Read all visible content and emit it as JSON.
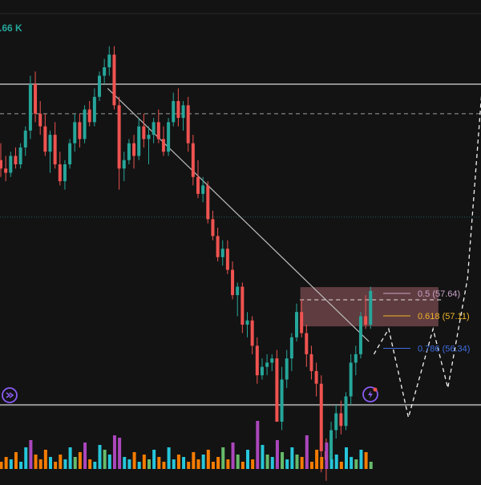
{
  "header": {
    "volume_readout": ".66 K"
  },
  "colors": {
    "background": "#131313",
    "bull": "#26a69a",
    "bear": "#ef5350",
    "horizontal_line": "#d9d9d9",
    "trendline": "#bdbdbd",
    "fib_05": "#c8a2c8",
    "fib_0618": "#f0b429",
    "fib_0786": "#3f6fe0",
    "fib_zone": "#7a4b50",
    "icon_accent": "#8b5cf6"
  },
  "chart_data": {
    "type": "candlestick",
    "price_range": [
      55.0,
      64.5
    ],
    "candles": [
      {
        "o": 60.8,
        "h": 61.2,
        "l": 60.4,
        "c": 60.6
      },
      {
        "o": 60.6,
        "h": 60.9,
        "l": 60.3,
        "c": 60.5
      },
      {
        "o": 60.5,
        "h": 61.0,
        "l": 60.4,
        "c": 60.9
      },
      {
        "o": 60.9,
        "h": 61.1,
        "l": 60.6,
        "c": 60.7
      },
      {
        "o": 60.7,
        "h": 61.2,
        "l": 60.6,
        "c": 61.1
      },
      {
        "o": 61.1,
        "h": 61.6,
        "l": 60.9,
        "c": 61.5
      },
      {
        "o": 61.5,
        "h": 62.8,
        "l": 61.3,
        "c": 62.6
      },
      {
        "o": 62.6,
        "h": 62.9,
        "l": 61.7,
        "c": 61.9
      },
      {
        "o": 61.9,
        "h": 62.2,
        "l": 61.4,
        "c": 61.6
      },
      {
        "o": 61.6,
        "h": 61.9,
        "l": 60.9,
        "c": 61.0
      },
      {
        "o": 61.0,
        "h": 61.5,
        "l": 60.5,
        "c": 61.4
      },
      {
        "o": 61.4,
        "h": 61.7,
        "l": 60.6,
        "c": 60.7
      },
      {
        "o": 60.7,
        "h": 61.0,
        "l": 60.2,
        "c": 60.3
      },
      {
        "o": 60.3,
        "h": 60.8,
        "l": 60.1,
        "c": 60.7
      },
      {
        "o": 60.7,
        "h": 61.3,
        "l": 60.6,
        "c": 61.2
      },
      {
        "o": 61.2,
        "h": 61.9,
        "l": 61.0,
        "c": 61.7
      },
      {
        "o": 61.7,
        "h": 61.9,
        "l": 61.1,
        "c": 61.3
      },
      {
        "o": 61.3,
        "h": 62.1,
        "l": 61.2,
        "c": 62.0
      },
      {
        "o": 62.0,
        "h": 62.2,
        "l": 61.6,
        "c": 61.7
      },
      {
        "o": 61.7,
        "h": 62.5,
        "l": 61.6,
        "c": 62.3
      },
      {
        "o": 62.3,
        "h": 62.9,
        "l": 62.2,
        "c": 62.8
      },
      {
        "o": 62.8,
        "h": 63.2,
        "l": 62.6,
        "c": 63.0
      },
      {
        "o": 63.0,
        "h": 63.5,
        "l": 62.8,
        "c": 63.3
      },
      {
        "o": 63.3,
        "h": 63.5,
        "l": 62.0,
        "c": 62.1
      },
      {
        "o": 62.1,
        "h": 62.3,
        "l": 60.1,
        "c": 60.6
      },
      {
        "o": 60.6,
        "h": 61.0,
        "l": 60.3,
        "c": 60.8
      },
      {
        "o": 60.8,
        "h": 61.3,
        "l": 60.7,
        "c": 61.2
      },
      {
        "o": 61.2,
        "h": 61.4,
        "l": 60.6,
        "c": 60.9
      },
      {
        "o": 60.9,
        "h": 61.8,
        "l": 60.8,
        "c": 61.6
      },
      {
        "o": 61.6,
        "h": 61.9,
        "l": 61.1,
        "c": 61.3
      },
      {
        "o": 61.3,
        "h": 61.6,
        "l": 60.7,
        "c": 61.4
      },
      {
        "o": 61.4,
        "h": 61.8,
        "l": 61.2,
        "c": 61.7
      },
      {
        "o": 61.7,
        "h": 62.0,
        "l": 61.2,
        "c": 61.3
      },
      {
        "o": 61.3,
        "h": 61.6,
        "l": 60.9,
        "c": 61.0
      },
      {
        "o": 61.0,
        "h": 61.8,
        "l": 60.9,
        "c": 61.7
      },
      {
        "o": 61.7,
        "h": 62.4,
        "l": 61.6,
        "c": 62.2
      },
      {
        "o": 62.2,
        "h": 62.5,
        "l": 61.6,
        "c": 61.8
      },
      {
        "o": 61.8,
        "h": 62.2,
        "l": 61.5,
        "c": 62.1
      },
      {
        "o": 62.1,
        "h": 62.3,
        "l": 61.0,
        "c": 61.2
      },
      {
        "o": 61.2,
        "h": 61.4,
        "l": 60.2,
        "c": 60.4
      },
      {
        "o": 60.4,
        "h": 60.8,
        "l": 59.9,
        "c": 60.0
      },
      {
        "o": 60.0,
        "h": 60.4,
        "l": 59.8,
        "c": 60.2
      },
      {
        "o": 60.2,
        "h": 60.3,
        "l": 59.3,
        "c": 59.4
      },
      {
        "o": 59.4,
        "h": 59.6,
        "l": 58.9,
        "c": 59.0
      },
      {
        "o": 59.0,
        "h": 59.2,
        "l": 58.4,
        "c": 58.5
      },
      {
        "o": 58.5,
        "h": 58.9,
        "l": 58.3,
        "c": 58.7
      },
      {
        "o": 58.7,
        "h": 58.9,
        "l": 58.1,
        "c": 58.2
      },
      {
        "o": 58.2,
        "h": 58.4,
        "l": 57.5,
        "c": 57.6
      },
      {
        "o": 57.6,
        "h": 57.9,
        "l": 57.1,
        "c": 57.8
      },
      {
        "o": 57.8,
        "h": 57.9,
        "l": 56.7,
        "c": 56.9
      },
      {
        "o": 56.9,
        "h": 57.2,
        "l": 56.6,
        "c": 57.0
      },
      {
        "o": 57.0,
        "h": 57.1,
        "l": 56.2,
        "c": 56.4
      },
      {
        "o": 56.4,
        "h": 56.6,
        "l": 55.5,
        "c": 55.7
      },
      {
        "o": 55.7,
        "h": 56.1,
        "l": 55.6,
        "c": 55.9
      },
      {
        "o": 55.9,
        "h": 56.2,
        "l": 55.7,
        "c": 56.0
      },
      {
        "o": 56.0,
        "h": 56.2,
        "l": 55.8,
        "c": 56.1
      },
      {
        "o": 56.1,
        "h": 56.3,
        "l": 54.6,
        "c": 54.6
      },
      {
        "o": 54.6,
        "h": 55.9,
        "l": 54.4,
        "c": 55.6
      },
      {
        "o": 55.6,
        "h": 56.3,
        "l": 55.4,
        "c": 56.1
      },
      {
        "o": 56.1,
        "h": 56.7,
        "l": 55.8,
        "c": 56.6
      },
      {
        "o": 56.6,
        "h": 57.4,
        "l": 56.5,
        "c": 57.2
      },
      {
        "o": 57.2,
        "h": 57.5,
        "l": 56.6,
        "c": 56.7
      },
      {
        "o": 56.7,
        "h": 56.9,
        "l": 55.9,
        "c": 56.2
      },
      {
        "o": 56.2,
        "h": 56.4,
        "l": 55.6,
        "c": 55.8
      },
      {
        "o": 55.8,
        "h": 56.0,
        "l": 55.2,
        "c": 55.5
      },
      {
        "o": 55.5,
        "h": 55.7,
        "l": 53.4,
        "c": 53.9
      },
      {
        "o": 53.9,
        "h": 54.2,
        "l": 53.2,
        "c": 53.7
      },
      {
        "o": 53.7,
        "h": 54.6,
        "l": 53.5,
        "c": 54.4
      },
      {
        "o": 54.4,
        "h": 55.0,
        "l": 54.2,
        "c": 54.8
      },
      {
        "o": 54.8,
        "h": 55.1,
        "l": 54.3,
        "c": 54.5
      },
      {
        "o": 54.5,
        "h": 55.3,
        "l": 54.4,
        "c": 55.2
      },
      {
        "o": 55.2,
        "h": 56.2,
        "l": 55.0,
        "c": 56.0
      },
      {
        "o": 56.0,
        "h": 56.4,
        "l": 55.7,
        "c": 56.2
      },
      {
        "o": 56.2,
        "h": 57.2,
        "l": 56.1,
        "c": 57.1
      },
      {
        "o": 57.1,
        "h": 57.6,
        "l": 56.8,
        "c": 56.9
      },
      {
        "o": 56.9,
        "h": 57.8,
        "l": 56.8,
        "c": 57.7
      }
    ],
    "volume": [
      3,
      5,
      4,
      7,
      3,
      9,
      12,
      6,
      4,
      8,
      5,
      3,
      6,
      4,
      9,
      5,
      7,
      11,
      4,
      3,
      10,
      8,
      6,
      14,
      13,
      5,
      4,
      7,
      3,
      6,
      4,
      8,
      5,
      3,
      9,
      4,
      6,
      5,
      3,
      7,
      4,
      6,
      8,
      3,
      5,
      9,
      4,
      11,
      6,
      3,
      8,
      4,
      20,
      10,
      6,
      5,
      12,
      7,
      4,
      9,
      6,
      5,
      14,
      3,
      8,
      5,
      11,
      4,
      6,
      3,
      9,
      5,
      4,
      8,
      7,
      3
    ],
    "horizontal_levels": [
      62.6,
      55.0
    ],
    "dashed_levels": [
      61.9,
      59.45
    ],
    "trendline": {
      "from_index": 22,
      "from_price": 62.5,
      "to_index": 75,
      "to_price": 56.5
    },
    "fibonacci": [
      {
        "ratio": "0.5",
        "value": "57.64"
      },
      {
        "ratio": "0.618",
        "value": "57.11"
      },
      {
        "ratio": "0.786",
        "value": "56.34"
      }
    ],
    "projection_path": [
      [
        76,
        56.2
      ],
      [
        79,
        56.8
      ],
      [
        83,
        54.7
      ],
      [
        88,
        56.8
      ],
      [
        91,
        55.4
      ],
      [
        95,
        58.0
      ],
      [
        98,
        62.6
      ]
    ]
  }
}
